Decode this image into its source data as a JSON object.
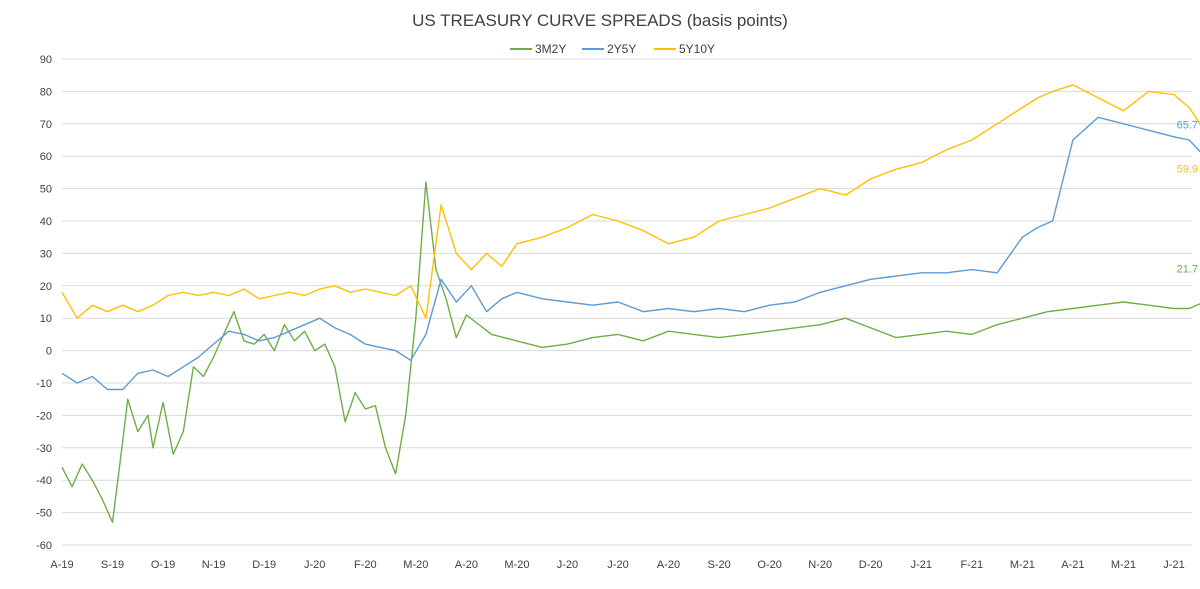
{
  "chart_data": {
    "type": "line",
    "title": "US TREASURY CURVE SPREADS (basis points)",
    "xlabel": "",
    "ylabel": "",
    "ylim": [
      -60,
      90
    ],
    "y_ticks": [
      90,
      80,
      70,
      60,
      50,
      40,
      30,
      20,
      10,
      0,
      -10,
      -20,
      -30,
      -40,
      -50,
      -60
    ],
    "x_tick_labels": [
      "A-19",
      "S-19",
      "O-19",
      "N-19",
      "D-19",
      "J-20",
      "F-20",
      "M-20",
      "A-20",
      "M-20",
      "J-20",
      "J-20",
      "A-20",
      "S-20",
      "O-20",
      "N-20",
      "D-20",
      "J-21",
      "F-21",
      "M-21",
      "A-21",
      "M-21",
      "J-21"
    ],
    "grid": "horizontal",
    "legend_position": "top-center",
    "series": [
      {
        "name": "3M2Y",
        "color": "#70AD47",
        "end_label": "21.7",
        "x": [
          0,
          0.2,
          0.4,
          0.6,
          0.8,
          1.0,
          1.2,
          1.3,
          1.5,
          1.7,
          1.8,
          2.0,
          2.2,
          2.4,
          2.6,
          2.8,
          3.0,
          3.2,
          3.4,
          3.6,
          3.8,
          4.0,
          4.2,
          4.4,
          4.6,
          4.8,
          5.0,
          5.2,
          5.4,
          5.6,
          5.8,
          6.0,
          6.2,
          6.4,
          6.6,
          6.8,
          7.0,
          7.2,
          7.4,
          7.6,
          7.8,
          8.0,
          8.5,
          9.0,
          9.5,
          10,
          10.5,
          11,
          11.5,
          12,
          12.5,
          13,
          13.5,
          14,
          14.5,
          15,
          15.5,
          16,
          16.5,
          17,
          17.5,
          18,
          18.5,
          19,
          19.5,
          20,
          20.5,
          21,
          21.5,
          22,
          22.3,
          22.6,
          22.8,
          23
        ],
        "values": [
          -36,
          -42,
          -35,
          -40,
          -46,
          -53,
          -28,
          -15,
          -25,
          -20,
          -30,
          -16,
          -32,
          -25,
          -5,
          -8,
          -2,
          5,
          12,
          3,
          2,
          5,
          0,
          8,
          3,
          6,
          0,
          2,
          -5,
          -22,
          -13,
          -18,
          -17,
          -30,
          -38,
          -20,
          10,
          52,
          25,
          16,
          4,
          11,
          5,
          3,
          1,
          2,
          4,
          5,
          3,
          6,
          5,
          4,
          5,
          6,
          7,
          8,
          10,
          7,
          4,
          5,
          6,
          5,
          8,
          10,
          12,
          13,
          14,
          15,
          14,
          13,
          13,
          15,
          21.7,
          21.7
        ]
      },
      {
        "name": "2Y5Y",
        "color": "#5B9BD5",
        "end_label": "65.7",
        "x": [
          0,
          0.3,
          0.6,
          0.9,
          1.2,
          1.5,
          1.8,
          2.1,
          2.4,
          2.7,
          3.0,
          3.3,
          3.6,
          3.9,
          4.2,
          4.5,
          4.8,
          5.1,
          5.4,
          5.7,
          6.0,
          6.3,
          6.6,
          6.9,
          7.2,
          7.5,
          7.8,
          8.1,
          8.4,
          8.7,
          9.0,
          9.5,
          10,
          10.5,
          11,
          11.5,
          12,
          12.5,
          13,
          13.5,
          14,
          14.5,
          15,
          15.5,
          16,
          16.5,
          17,
          17.5,
          18,
          18.5,
          19,
          19.3,
          19.6,
          20,
          20.5,
          21,
          21.5,
          22,
          22.3,
          22.6,
          22.8,
          23
        ],
        "values": [
          -7,
          -10,
          -8,
          -12,
          -12,
          -7,
          -6,
          -8,
          -5,
          -2,
          2,
          6,
          5,
          3,
          4,
          6,
          8,
          10,
          7,
          5,
          2,
          1,
          0,
          -3,
          5,
          22,
          15,
          20,
          12,
          16,
          18,
          16,
          15,
          14,
          15,
          12,
          13,
          12,
          13,
          12,
          14,
          15,
          18,
          20,
          22,
          23,
          24,
          24,
          25,
          24,
          35,
          38,
          40,
          65,
          72,
          70,
          68,
          66,
          65,
          60,
          62,
          65.7
        ]
      },
      {
        "name": "5Y10Y",
        "color": "#FFC000",
        "end_label": "59.9",
        "x": [
          0,
          0.3,
          0.6,
          0.9,
          1.2,
          1.5,
          1.8,
          2.1,
          2.4,
          2.7,
          3.0,
          3.3,
          3.6,
          3.9,
          4.2,
          4.5,
          4.8,
          5.1,
          5.4,
          5.7,
          6.0,
          6.3,
          6.6,
          6.9,
          7.2,
          7.5,
          7.8,
          8.1,
          8.4,
          8.7,
          9.0,
          9.5,
          10,
          10.5,
          11,
          11.5,
          12,
          12.5,
          13,
          13.5,
          14,
          14.5,
          15,
          15.5,
          16,
          16.5,
          17,
          17.5,
          18,
          18.5,
          19,
          19.3,
          19.6,
          20,
          20.5,
          21,
          21.5,
          22,
          22.3,
          22.6,
          22.8,
          23
        ],
        "values": [
          18,
          10,
          14,
          12,
          14,
          12,
          14,
          17,
          18,
          17,
          18,
          17,
          19,
          16,
          17,
          18,
          17,
          19,
          20,
          18,
          19,
          18,
          17,
          20,
          10,
          45,
          30,
          25,
          30,
          26,
          33,
          35,
          38,
          42,
          40,
          37,
          33,
          35,
          40,
          42,
          44,
          47,
          50,
          48,
          53,
          56,
          58,
          62,
          65,
          70,
          75,
          78,
          80,
          82,
          78,
          74,
          80,
          79,
          75,
          68,
          57,
          59.9
        ]
      }
    ]
  }
}
